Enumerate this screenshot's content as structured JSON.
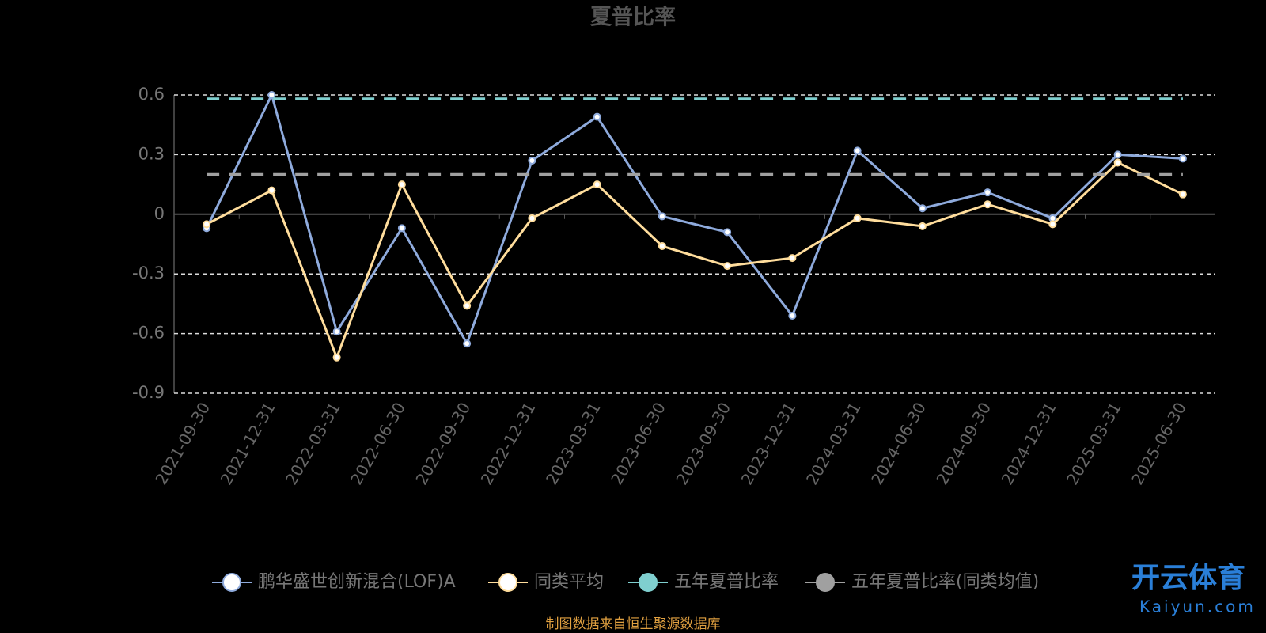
{
  "chart_data": {
    "type": "line",
    "title": "夏普比率",
    "categories": [
      "2021-09-30",
      "2021-12-31",
      "2022-03-31",
      "2022-06-30",
      "2022-09-30",
      "2022-12-31",
      "2023-03-31",
      "2023-06-30",
      "2023-09-30",
      "2023-12-31",
      "2024-03-31",
      "2024-06-30",
      "2024-09-30",
      "2024-12-31",
      "2025-03-31",
      "2025-06-30"
    ],
    "series": [
      {
        "name": "鹏华盛世创新混合(LOF)A",
        "color": "#8eaadc",
        "values": [
          -0.07,
          0.6,
          -0.59,
          -0.07,
          -0.65,
          0.27,
          0.49,
          -0.01,
          -0.09,
          -0.51,
          0.32,
          0.03,
          0.11,
          -0.02,
          0.3,
          0.28
        ]
      },
      {
        "name": "同类平均",
        "color": "#ffdd9c",
        "values": [
          -0.05,
          0.12,
          -0.72,
          0.15,
          -0.46,
          -0.02,
          0.15,
          -0.16,
          -0.26,
          -0.22,
          -0.02,
          -0.06,
          0.05,
          -0.05,
          0.26,
          0.1
        ]
      },
      {
        "name": "五年夏普比率",
        "color": "#7fcfcf",
        "value": 0.58
      },
      {
        "name": "五年夏普比率(同类均值)",
        "color": "#a0a0a0",
        "value": 0.2
      }
    ],
    "ylim": [
      -0.9,
      0.6
    ],
    "yticks": [
      -0.9,
      -0.6,
      -0.3,
      0,
      0.3,
      0.6
    ],
    "grid": true,
    "source": "制图数据来自恒生聚源数据库",
    "watermark": {
      "brand": "开云体育",
      "url": "Kaiyun.com"
    }
  }
}
